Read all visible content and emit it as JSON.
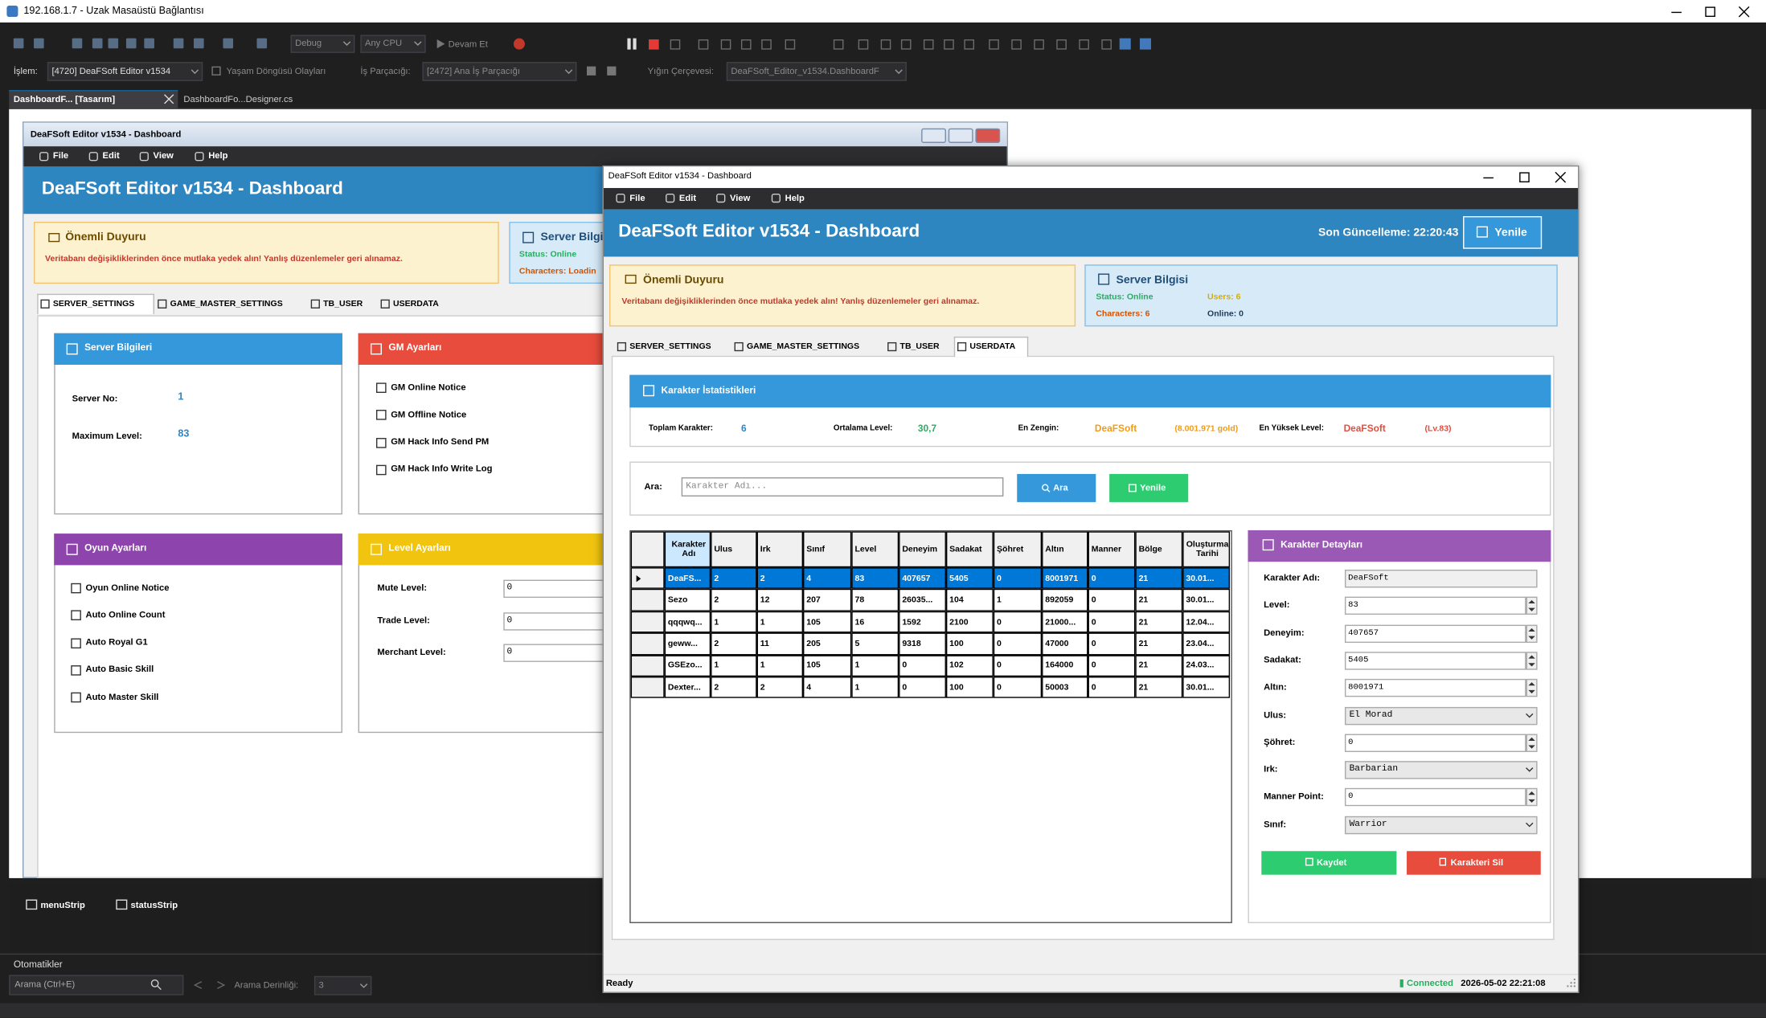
{
  "rdp": {
    "title": "192.168.1.7 - Uzak Masaüstü Bağlantısı"
  },
  "toolbar": {
    "config": "Debug",
    "platform": "Any CPU",
    "continue": "Devam Et"
  },
  "debug_bar": {
    "process_label": "İşlem:",
    "process": "[4720] DeaFSoft Editor v1534",
    "lifecycle": "Yaşam Döngüsü Olayları",
    "thread_label": "İş Parçacığı:",
    "thread": "[2472] Ana İş Parçacığı",
    "stack_label": "Yığın Çerçevesi:",
    "stack": "DeaFSoft_Editor_v1534.DashboardF"
  },
  "doc_tabs": [
    "DashboardF... [Tasarım]",
    "DashboardFo...Designer.cs"
  ],
  "app_title": "DeaFSoft Editor v1534 - Dashboard",
  "menu": [
    "File",
    "Edit",
    "View",
    "Help"
  ],
  "form_tabs": [
    "SERVER_SETTINGS",
    "GAME_MASTER_SETTINGS",
    "TB_USER",
    "USERDATA"
  ],
  "notice": {
    "title": "Önemli Duyuru",
    "text": "Veritabanı değişikliklerinden önce mutlaka yedek alın! Yanlış düzenlemeler geri alınamaz."
  },
  "designer": {
    "server_title": "Server Bilgi",
    "status": "Status: Online",
    "characters": "Characters: Loadin",
    "server_panel": {
      "title": "Server Bilgileri",
      "fields": [
        {
          "label": "Server No:",
          "value": "1"
        },
        {
          "label": "Maximum Level:",
          "value": "83"
        }
      ]
    },
    "gm_panel": {
      "title": "GM Ayarları",
      "options": [
        "GM Online Notice",
        "GM Offline Notice",
        "GM Hack Info Send PM",
        "GM Hack Info Write Log"
      ]
    },
    "game_panel": {
      "title": "Oyun Ayarları",
      "options": [
        "Oyun Online Notice",
        "Auto Online Count",
        "Auto Royal G1",
        "Auto Basic Skill",
        "Auto Master Skill"
      ]
    },
    "level_panel": {
      "title": "Level Ayarları",
      "fields": [
        {
          "label": "Mute Level:",
          "value": "0"
        },
        {
          "label": "Trade Level:",
          "value": "0"
        },
        {
          "label": "Merchant Level:",
          "value": "0"
        }
      ]
    }
  },
  "tray": [
    "menuStrip",
    "statusStrip"
  ],
  "autos": {
    "title": "Otomatikler",
    "search": "Arama (Ctrl+E)",
    "depth_label": "Arama Derinliği:",
    "depth": "3"
  },
  "app": {
    "last_update": "Son Güncelleme: 22:20:43",
    "refresh": "Yenile",
    "server": {
      "title": "Server Bilgisi",
      "status": "Status: Online",
      "users": "Users: 6",
      "characters": "Characters: 6",
      "online": "Online: 0"
    },
    "stats": {
      "title": "Karakter İstatistikleri",
      "total_label": "Toplam Karakter:",
      "total": "6",
      "avg_label": "Ortalama Level:",
      "avg": "30,7",
      "rich_label": "En Zengin:",
      "rich_name": "DeaFSoft",
      "rich_gold": "(8.001.971 gold)",
      "top_label": "En Yüksek Level:",
      "top_name": "DeaFSoft",
      "top_level": "(Lv.83)"
    },
    "search": {
      "label": "Ara:",
      "placeholder": "Karakter Adı...",
      "button": "Ara",
      "refresh": "Yenile"
    },
    "table": {
      "columns": [
        "Karakter Adı",
        "Ulus",
        "Irk",
        "Sınıf",
        "Level",
        "Deneyim",
        "Sadakat",
        "Şöhret",
        "Altın",
        "Manner",
        "Bölge",
        "Oluşturma Tarihi"
      ],
      "rows": [
        [
          "DeaFS...",
          "2",
          "2",
          "4",
          "83",
          "407657",
          "5405",
          "0",
          "8001971",
          "0",
          "21",
          "30.01..."
        ],
        [
          "Sezo",
          "2",
          "12",
          "207",
          "78",
          "26035...",
          "104",
          "1",
          "892059",
          "0",
          "21",
          "30.01..."
        ],
        [
          "qqqwq...",
          "1",
          "1",
          "105",
          "16",
          "1592",
          "2100",
          "0",
          "21000...",
          "0",
          "21",
          "12.04..."
        ],
        [
          "geww...",
          "2",
          "11",
          "205",
          "5",
          "9318",
          "100",
          "0",
          "47000",
          "0",
          "21",
          "23.04..."
        ],
        [
          "GSEzo...",
          "1",
          "1",
          "105",
          "1",
          "0",
          "102",
          "0",
          "164000",
          "0",
          "21",
          "24.03..."
        ],
        [
          "Dexter...",
          "2",
          "2",
          "4",
          "1",
          "0",
          "100",
          "0",
          "50003",
          "0",
          "21",
          "30.01..."
        ]
      ]
    },
    "details": {
      "title": "Karakter Detayları",
      "fields": [
        {
          "label": "Karakter Adı:",
          "value": "DeaFSoft",
          "control": "text"
        },
        {
          "label": "Level:",
          "value": "83",
          "control": "spin"
        },
        {
          "label": "Deneyim:",
          "value": "407657",
          "control": "spin"
        },
        {
          "label": "Sadakat:",
          "value": "5405",
          "control": "spin"
        },
        {
          "label": "Altın:",
          "value": "8001971",
          "control": "spin"
        },
        {
          "label": "Ulus:",
          "value": "El Morad",
          "control": "combo"
        },
        {
          "label": "Şöhret:",
          "value": "0",
          "control": "spin"
        },
        {
          "label": "Irk:",
          "value": "Barbarian",
          "control": "combo"
        },
        {
          "label": "Manner Point:",
          "value": "0",
          "control": "spin"
        },
        {
          "label": "Sınıf:",
          "value": "Warrior",
          "control": "combo"
        }
      ],
      "save": "Kaydet",
      "delete": "Karakteri Sil"
    }
  },
  "status": {
    "ready": "Ready",
    "connected": "Connected",
    "time": "2026-05-02 22:21:08"
  }
}
